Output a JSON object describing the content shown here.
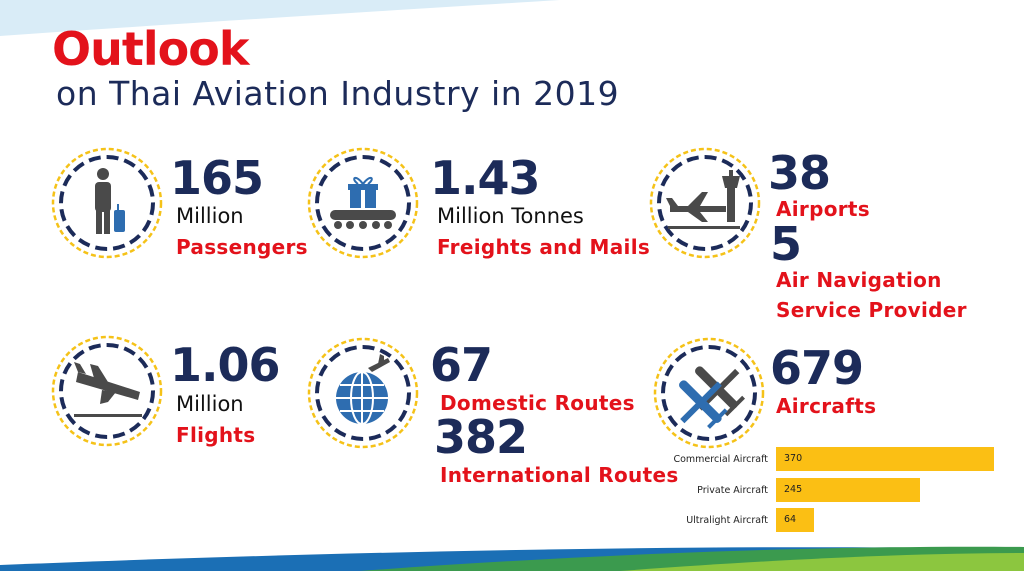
{
  "header": {
    "title": "Outlook",
    "subtitle": "on Thai Aviation Industry in 2019"
  },
  "stats": {
    "passengers": {
      "value": "165",
      "unit": "Million",
      "label": "Passengers",
      "icon": "passenger-icon"
    },
    "freight": {
      "value": "1.43",
      "unit": "Million Tonnes",
      "label": "Freights and Mails",
      "icon": "conveyor-parcel-icon"
    },
    "airports": {
      "value": "38",
      "label": "Airports",
      "icon": "airport-tower-icon"
    },
    "ansp": {
      "value": "5",
      "label_line1": "Air Navigation",
      "label_line2": "Service Provider"
    },
    "flights": {
      "value": "1.06",
      "unit": "Million",
      "label": "Flights",
      "icon": "landing-plane-icon"
    },
    "domestic": {
      "value": "67",
      "label": "Domestic Routes",
      "icon": "globe-plane-icon"
    },
    "international": {
      "value": "382",
      "label": "International Routes"
    },
    "aircrafts": {
      "value": "679",
      "label": "Aircrafts",
      "icon": "airplanes-icon"
    }
  },
  "chart_data": {
    "type": "bar",
    "orientation": "horizontal",
    "categories": [
      "Commercial Aircraft",
      "Private Aircraft",
      "Ultralight Aircraft"
    ],
    "values": [
      370,
      245,
      64
    ],
    "value_labels": [
      "370",
      "245",
      "64"
    ],
    "title": "",
    "xlabel": "",
    "ylabel": "",
    "xlim": [
      0,
      400
    ],
    "color": "#fbbf14"
  },
  "colors": {
    "accent_red": "#e3121b",
    "navy": "#1c2b59",
    "gold": "#f5c218",
    "icon_gray": "#4a4a4a",
    "icon_blue": "#2e6db0"
  }
}
